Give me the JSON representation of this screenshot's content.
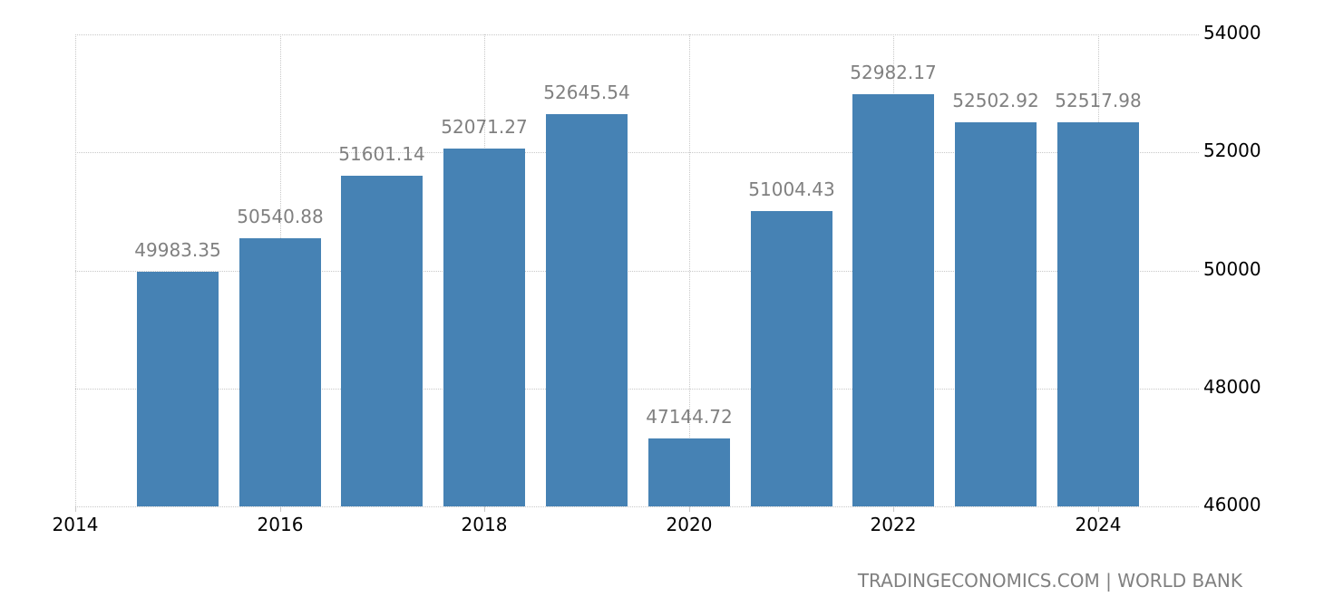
{
  "chart_data": {
    "type": "bar",
    "title": "",
    "xlabel": "",
    "ylabel": "",
    "categories": [
      "2015",
      "2016",
      "2017",
      "2018",
      "2019",
      "2020",
      "2021",
      "2022",
      "2023",
      "2024"
    ],
    "values": [
      49983.35,
      50540.88,
      51601.14,
      52071.27,
      52645.54,
      47144.72,
      51004.43,
      52982.17,
      52502.92,
      52517.98
    ],
    "value_labels": [
      "49983.35",
      "50540.88",
      "51601.14",
      "52071.27",
      "52645.54",
      "47144.72",
      "51004.43",
      "52982.17",
      "52502.92",
      "52517.98"
    ],
    "ylim": [
      46000,
      54000
    ],
    "y_ticks": [
      46000,
      48000,
      50000,
      52000,
      54000
    ],
    "y_tick_labels": [
      "46000",
      "48000",
      "50000",
      "52000",
      "54000"
    ],
    "x_ticks": [
      2014,
      2016,
      2018,
      2020,
      2022,
      2024
    ],
    "x_tick_labels": [
      "2014",
      "2016",
      "2018",
      "2020",
      "2022",
      "2024"
    ],
    "y_axis_position": "right",
    "grid": true,
    "legend": null,
    "bar_color": "#4682b4"
  },
  "source": "TRADINGECONOMICS.COM  |  WORLD BANK",
  "colors": {
    "bar": "#4682b4",
    "value_label": "#808080",
    "tick_label": "#000000",
    "grid": "#c8c8c8",
    "source_text": "#808080"
  }
}
